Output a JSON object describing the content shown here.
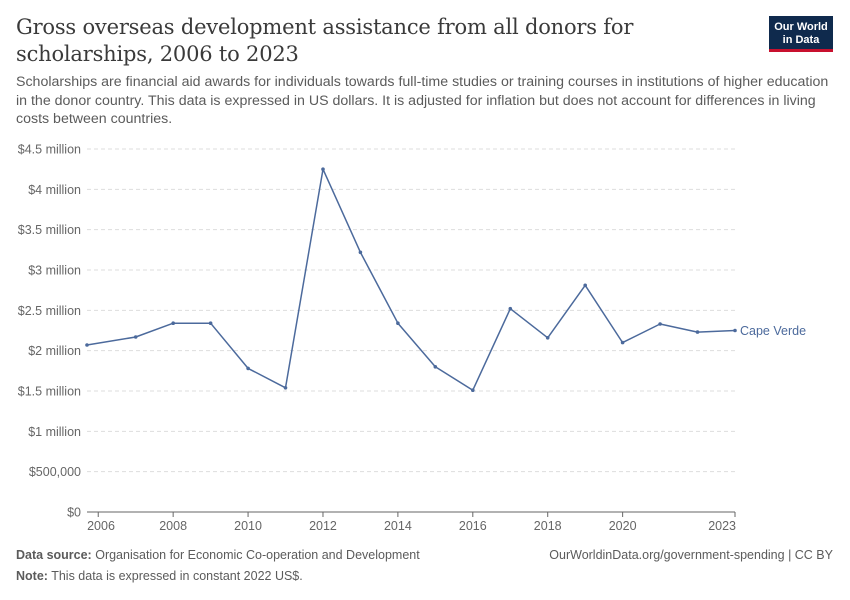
{
  "header": {
    "title": "Gross overseas development assistance from all donors for scholarships, 2006 to 2023",
    "subtitle": "Scholarships are financial aid awards for individuals towards full-time studies or training courses in institutions of higher education in the donor country. This data is expressed in US dollars. It is adjusted for inflation but does not account for differences in living costs between countries.",
    "logo_line1": "Our World",
    "logo_line2": "in Data"
  },
  "footer": {
    "source_label": "Data source:",
    "source_text": "Organisation for Economic Co-operation and Development",
    "note_label": "Note:",
    "note_text": "This data is expressed in constant 2022 US$.",
    "url_license": "OurWorldinData.org/government-spending | CC BY"
  },
  "colors": {
    "series": "#4c6a9c",
    "grid": "#dddddd",
    "axis": "#666666"
  },
  "chart_data": {
    "type": "line",
    "title": "Gross overseas development assistance from all donors for scholarships, 2006 to 2023",
    "xlabel": "",
    "ylabel": "",
    "xlim": [
      2005.7,
      2023
    ],
    "ylim": [
      0,
      4500000
    ],
    "grid": "horizontal dashed",
    "legend": "inline-right",
    "x_ticks": [
      {
        "value": 2006,
        "label": "2006"
      },
      {
        "value": 2008,
        "label": "2008"
      },
      {
        "value": 2010,
        "label": "2010"
      },
      {
        "value": 2012,
        "label": "2012"
      },
      {
        "value": 2014,
        "label": "2014"
      },
      {
        "value": 2016,
        "label": "2016"
      },
      {
        "value": 2018,
        "label": "2018"
      },
      {
        "value": 2020,
        "label": "2020"
      },
      {
        "value": 2023,
        "label": "2023"
      }
    ],
    "y_ticks": [
      {
        "value": 0,
        "label": "$0"
      },
      {
        "value": 500000,
        "label": "$500,000"
      },
      {
        "value": 1000000,
        "label": "$1 million"
      },
      {
        "value": 1500000,
        "label": "$1.5 million"
      },
      {
        "value": 2000000,
        "label": "$2 million"
      },
      {
        "value": 2500000,
        "label": "$2.5 million"
      },
      {
        "value": 3000000,
        "label": "$3 million"
      },
      {
        "value": 3500000,
        "label": "$3.5 million"
      },
      {
        "value": 4000000,
        "label": "$4 million"
      },
      {
        "value": 4500000,
        "label": "$4.5 million"
      }
    ],
    "series": [
      {
        "name": "Cape Verde",
        "x": [
          2005.7,
          2007,
          2008,
          2009,
          2010,
          2011,
          2012,
          2013,
          2014,
          2015,
          2016,
          2017,
          2018,
          2019,
          2020,
          2021,
          2022,
          2023
        ],
        "values": [
          2070000,
          2170000,
          2340000,
          2340000,
          1780000,
          1540000,
          4250000,
          3220000,
          2340000,
          1800000,
          1510000,
          2520000,
          2160000,
          2810000,
          2100000,
          2330000,
          2230000,
          2250000
        ]
      }
    ]
  }
}
